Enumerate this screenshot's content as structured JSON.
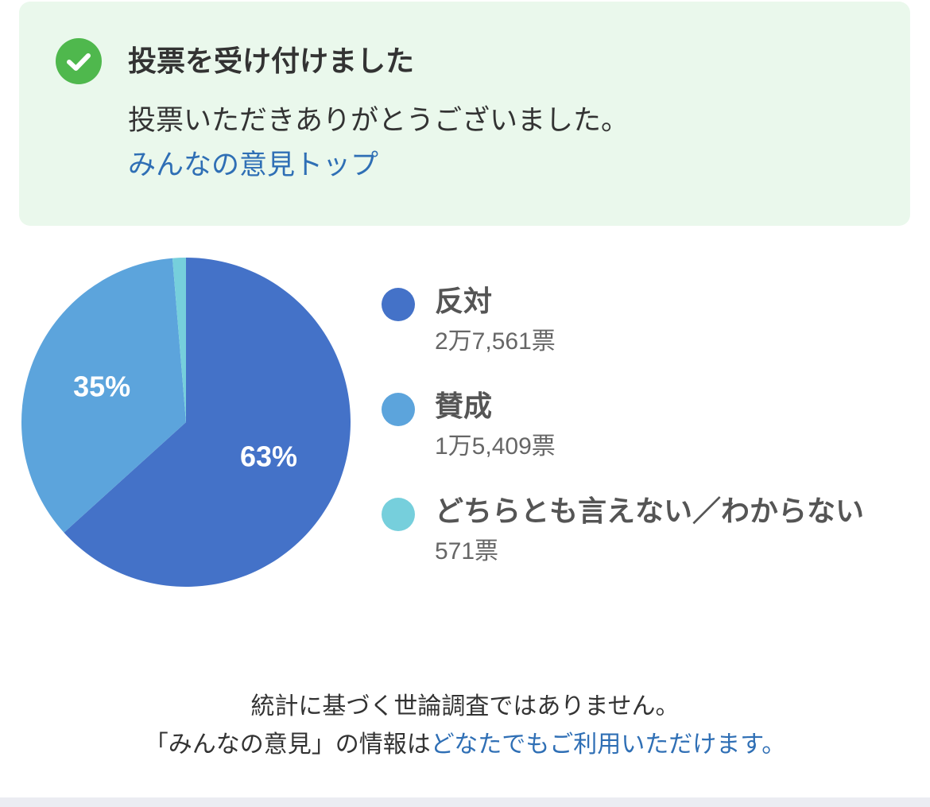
{
  "notice": {
    "icon": "check-circle-icon",
    "title": "投票を受け付けました",
    "message": "投票いただきありがとうございました。",
    "link_label": "みんなの意見トップ"
  },
  "chart_data": {
    "type": "pie",
    "slices": [
      {
        "label": "反対",
        "count": "2万7,561票",
        "value": 27561,
        "percent_label": "63%",
        "color": "#4472c8"
      },
      {
        "label": "賛成",
        "count": "1万5,409票",
        "value": 15409,
        "percent_label": "35%",
        "color": "#5ca4dc"
      },
      {
        "label": "どちらとも言えない／わからない",
        "count": "571票",
        "value": 571,
        "percent_label": "",
        "color": "#76cfdc"
      }
    ]
  },
  "footer": {
    "line1": "統計に基づく世論調査ではありません。",
    "line2_prefix": "「みんなの意見」の情報は",
    "line2_link": "どなたでもご利用いただけます。"
  },
  "colors": {
    "notice_bg": "#eaf8ec",
    "check": "#4fb84d",
    "link": "#2f6fb5"
  }
}
